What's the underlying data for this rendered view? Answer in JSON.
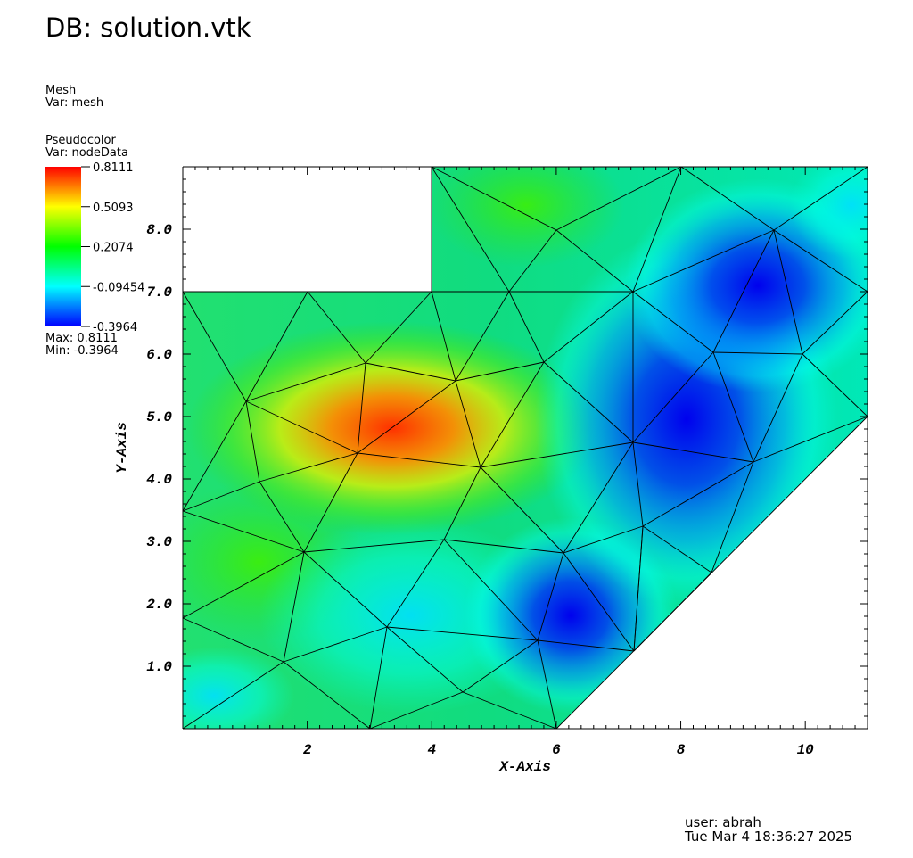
{
  "header": {
    "db_title": "DB: solution.vtk"
  },
  "mesh_plot": {
    "name": "Mesh",
    "var": "Var: mesh"
  },
  "pseudocolor": {
    "name": "Pseudocolor",
    "var": "Var: nodeData",
    "legend_ticks": [
      "0.8111",
      "0.5093",
      "0.2074",
      "-0.09454",
      "-0.3964"
    ],
    "max_label": "Max:  0.8111",
    "min_label": "Min: -0.3964",
    "max_value": 0.8111,
    "min_value": -0.3964,
    "colormap": [
      "#0000ff",
      "#00ffff",
      "#00ff00",
      "#ffff00",
      "#ff0000"
    ]
  },
  "axes": {
    "x_label": "X-Axis",
    "y_label": "Y-Axis",
    "x_ticks": [
      "2",
      "4",
      "6",
      "8",
      "10"
    ],
    "y_ticks": [
      "1.0",
      "2.0",
      "3.0",
      "4.0",
      "5.0",
      "6.0",
      "7.0",
      "8.0"
    ],
    "x_range": [
      0,
      11
    ],
    "y_range": [
      0,
      9
    ]
  },
  "footer": {
    "user": "user: abrah",
    "timestamp": "Tue Mar  4 18:36:27 2025"
  }
}
